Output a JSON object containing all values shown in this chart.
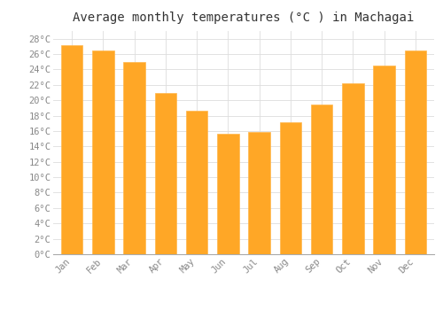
{
  "title": "Average monthly temperatures (°C ) in Machagai",
  "months": [
    "Jan",
    "Feb",
    "Mar",
    "Apr",
    "May",
    "Jun",
    "Jul",
    "Aug",
    "Sep",
    "Oct",
    "Nov",
    "Dec"
  ],
  "temperatures": [
    27.2,
    26.5,
    25.0,
    21.0,
    18.7,
    15.7,
    15.9,
    17.2,
    19.5,
    22.2,
    24.5,
    26.5
  ],
  "bar_color": "#FFA726",
  "bar_edge_color": "#FFB74D",
  "ylim": [
    0,
    29
  ],
  "yticks": [
    0,
    2,
    4,
    6,
    8,
    10,
    12,
    14,
    16,
    18,
    20,
    22,
    24,
    26,
    28
  ],
  "background_color": "#FFFFFF",
  "grid_color": "#DDDDDD",
  "title_fontsize": 10,
  "tick_fontsize": 7.5,
  "title_font": "monospace",
  "tick_font": "monospace",
  "tick_color": "#888888"
}
